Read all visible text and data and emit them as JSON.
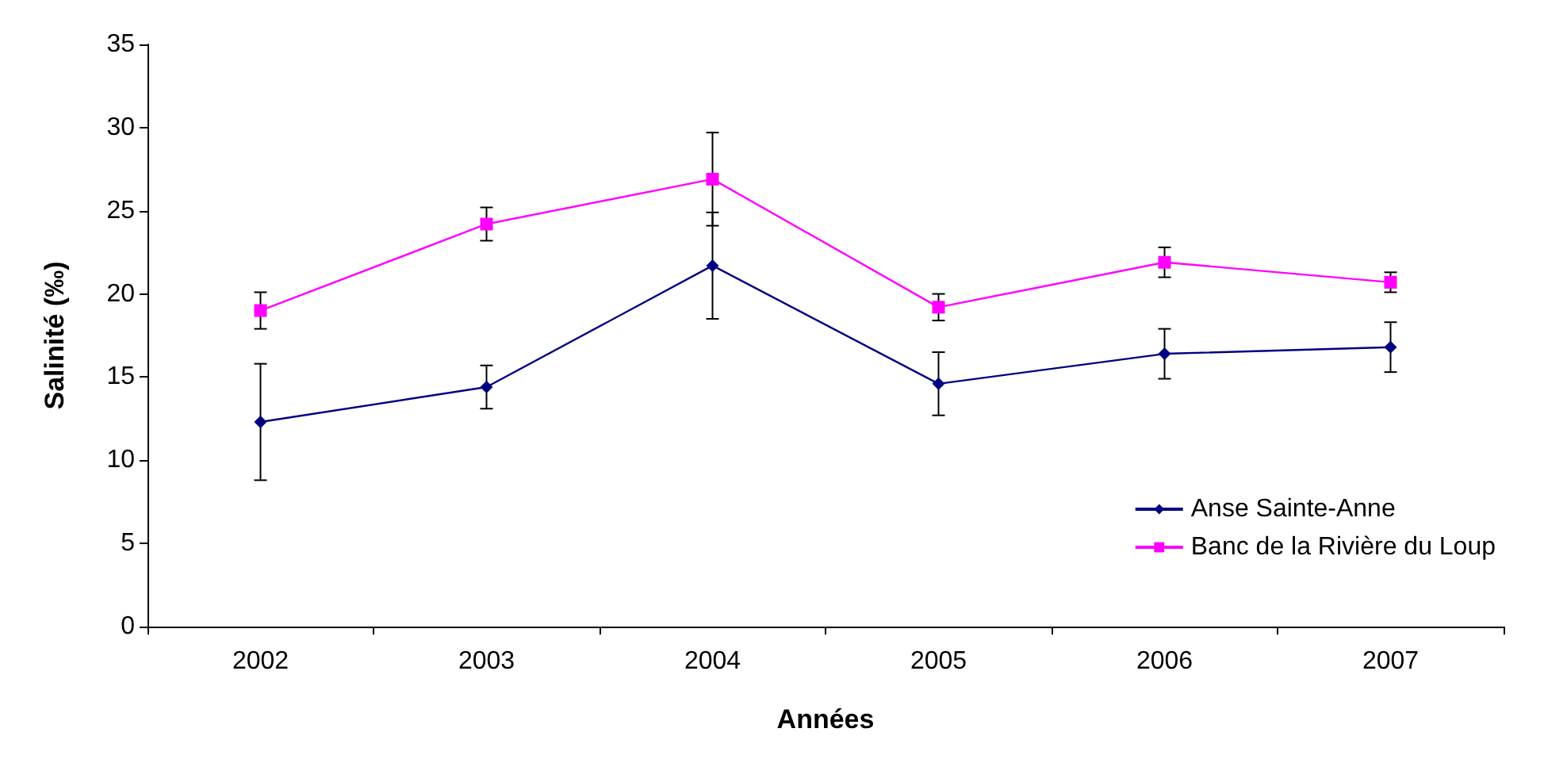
{
  "chart_data": {
    "type": "line",
    "xlabel": "Années",
    "ylabel": "Salinité (‰)",
    "categories": [
      "2002",
      "2003",
      "2004",
      "2005",
      "2006",
      "2007"
    ],
    "series": [
      {
        "name": "Anse Sainte-Anne",
        "color": "#000080",
        "marker": "diamond",
        "values": [
          12.3,
          14.4,
          21.7,
          14.6,
          16.4,
          16.8
        ],
        "errors": [
          3.5,
          1.3,
          3.2,
          1.9,
          1.5,
          1.5
        ]
      },
      {
        "name": "Banc de la Rivière du Loup",
        "color": "#ff00ff",
        "marker": "square",
        "values": [
          19.0,
          24.2,
          26.9,
          19.2,
          21.9,
          20.7
        ],
        "errors": [
          1.1,
          1.0,
          2.8,
          0.8,
          0.9,
          0.6
        ]
      }
    ],
    "ylim": [
      0,
      35
    ],
    "yticks": [
      0,
      5,
      10,
      15,
      20,
      25,
      30,
      35
    ],
    "grid": false,
    "legend": "right",
    "line_style": "solid"
  }
}
